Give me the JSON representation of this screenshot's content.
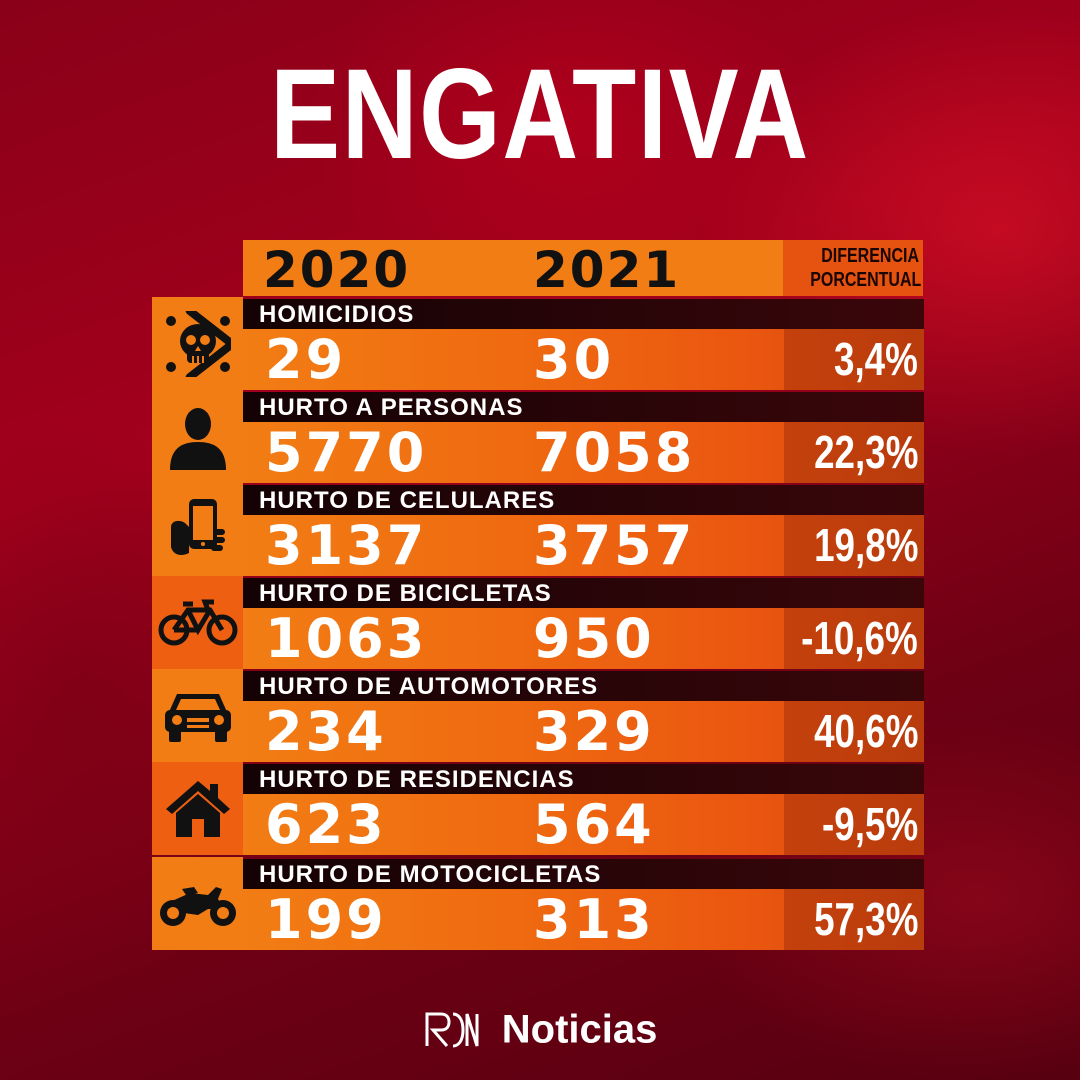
{
  "title": "ENGATIVA",
  "header": {
    "year1": "2020",
    "year2": "2021",
    "diff_line1": "DIFERENCIA",
    "diff_line2": "PORCENTUAL"
  },
  "rows": [
    {
      "icon": "skull-icon",
      "label": "HOMICIDIOS",
      "v2020": "29",
      "v2021": "30",
      "pct": "3,4%"
    },
    {
      "icon": "person-icon",
      "label": "HURTO A PERSONAS",
      "v2020": "5770",
      "v2021": "7058",
      "pct": "22,3%"
    },
    {
      "icon": "phone-in-hand-icon",
      "label": "HURTO DE CELULARES",
      "v2020": "3137",
      "v2021": "3757",
      "pct": "19,8%"
    },
    {
      "icon": "bicycle-icon",
      "label": "HURTO DE BICICLETAS",
      "v2020": "1063",
      "v2021": "950",
      "pct": "-10,6%"
    },
    {
      "icon": "car-icon",
      "label": "HURTO DE AUTOMOTORES",
      "v2020": "234",
      "v2021": "329",
      "pct": "40,6%"
    },
    {
      "icon": "house-icon",
      "label": "HURTO DE RESIDENCIAS",
      "v2020": "623",
      "v2021": "564",
      "pct": "-9,5%"
    },
    {
      "icon": "motorcycle-icon",
      "label": "HURTO DE MOTOCICLETAS",
      "v2020": "199",
      "v2021": "313",
      "pct": "57,3%"
    }
  ],
  "brand": {
    "name": "Noticias",
    "logo_icon": "rcn-logo-icon"
  },
  "colors": {
    "background": "#8a0018",
    "accent_orange": "#f27d14",
    "label_bar": "#1a0305"
  }
}
